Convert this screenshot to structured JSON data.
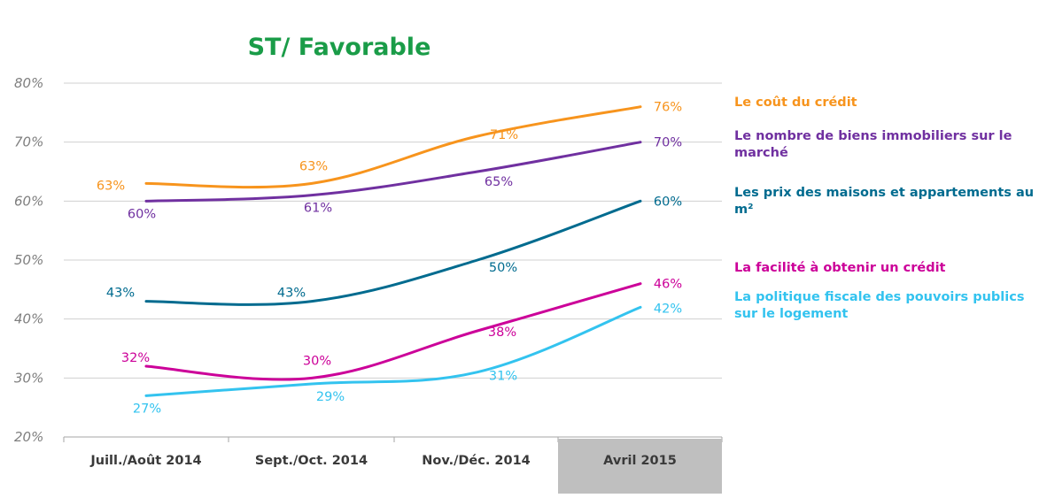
{
  "chart_data": {
    "type": "line",
    "title": "ST/ Favorable",
    "categories": [
      "Juill./Août 2014",
      "Sept./Oct. 2014",
      "Nov./Déc. 2014",
      "Avril 2015"
    ],
    "ylim": [
      20,
      80
    ],
    "yticks": [
      "80%",
      "70%",
      "60%",
      "50%",
      "40%",
      "30%",
      "20%"
    ],
    "grid": true,
    "legend_position": "right",
    "highlight_category": "Avril 2015",
    "series": [
      {
        "name": "Le coût du crédit",
        "color": "#f7941d",
        "values": [
          63,
          63,
          71,
          76
        ],
        "labels": [
          "63%",
          "63%",
          "71%",
          "76%"
        ]
      },
      {
        "name": "Le nombre de biens immobiliers sur le marché",
        "color": "#7030a0",
        "values": [
          60,
          61,
          65,
          70
        ],
        "labels": [
          "60%",
          "61%",
          "65%",
          "70%"
        ]
      },
      {
        "name": "Les prix des maisons et appartements au m²",
        "color": "#006b8f",
        "values": [
          43,
          43,
          50,
          60
        ],
        "labels": [
          "43%",
          "43%",
          "50%",
          "60%"
        ]
      },
      {
        "name": "La facilité à obtenir un crédit",
        "color": "#cc0099",
        "values": [
          32,
          30,
          38,
          46
        ],
        "labels": [
          "32%",
          "30%",
          "38%",
          "46%"
        ]
      },
      {
        "name": "La politique fiscale des pouvoirs publics sur le logement",
        "color": "#33c3ef",
        "values": [
          27,
          29,
          31,
          42
        ],
        "labels": [
          "27%",
          "29%",
          "31%",
          "42%"
        ]
      }
    ]
  },
  "colors": {
    "title": "#1a9c48",
    "grid": "#d0d0d0",
    "highlight_band": "#bfbfbf"
  }
}
